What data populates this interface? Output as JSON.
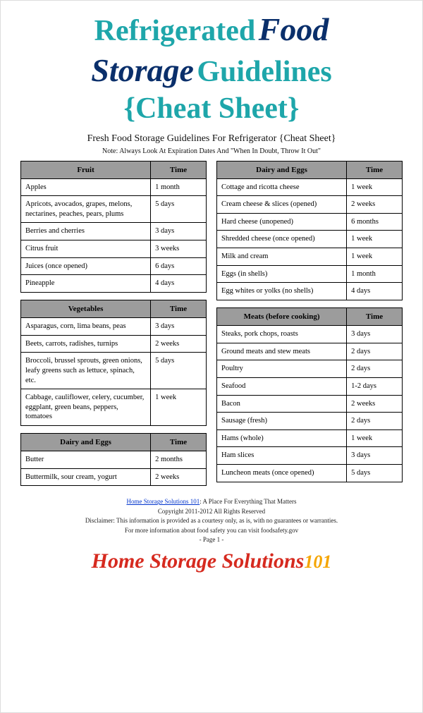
{
  "colors": {
    "teal": "#1ea6aa",
    "navy": "#0a2f6b",
    "header_gray": "#9c9c9c",
    "brand_red": "#d62a1f",
    "brand_yellow": "#f5a500",
    "link_blue": "#0033cc"
  },
  "title": {
    "word1": "Refrigerated",
    "word2": "Food",
    "word3": "Storage",
    "word4": "Guidelines",
    "word5": "{Cheat Sheet}"
  },
  "subtitle": "Fresh Food Storage Guidelines For Refrigerator {Cheat Sheet}",
  "note": "Note: Always Look At Expiration Dates And \"When In Doubt, Throw It Out\"",
  "sections_left": [
    {
      "header": {
        "name": "Fruit",
        "time": "Time"
      },
      "rows": [
        {
          "item": "Apples",
          "time": "1 month"
        },
        {
          "item": "Apricots, avocados, grapes, melons, nectarines, peaches, pears, plums",
          "time": "5 days"
        },
        {
          "item": "Berries and cherries",
          "time": "3 days"
        },
        {
          "item": "Citrus fruit",
          "time": "3 weeks"
        },
        {
          "item": "Juices (once opened)",
          "time": "6 days"
        },
        {
          "item": "Pineapple",
          "time": "4 days"
        }
      ]
    },
    {
      "header": {
        "name": "Vegetables",
        "time": "Time"
      },
      "rows": [
        {
          "item": "Asparagus, corn, lima beans, peas",
          "time": "3 days"
        },
        {
          "item": "Beets, carrots, radishes, turnips",
          "time": "2 weeks"
        },
        {
          "item": "Broccoli, brussel sprouts, green onions, leafy greens such as lettuce, spinach, etc.",
          "time": "5 days"
        },
        {
          "item": "Cabbage, cauliflower, celery, cucumber, eggplant, green beans, peppers, tomatoes",
          "time": "1 week"
        }
      ]
    },
    {
      "header": {
        "name": "Dairy and Eggs",
        "time": "Time"
      },
      "rows": [
        {
          "item": "Butter",
          "time": "2 months"
        },
        {
          "item": "Buttermilk, sour cream, yogurt",
          "time": "2 weeks"
        }
      ]
    }
  ],
  "sections_right": [
    {
      "header": {
        "name": "Dairy and Eggs",
        "time": "Time"
      },
      "rows": [
        {
          "item": "Cottage and ricotta cheese",
          "time": "1 week"
        },
        {
          "item": "Cream cheese & slices (opened)",
          "time": "2 weeks"
        },
        {
          "item": "Hard cheese (unopened)",
          "time": "6 months"
        },
        {
          "item": "Shredded cheese (once opened)",
          "time": "1 week"
        },
        {
          "item": "Milk and cream",
          "time": "1 week"
        },
        {
          "item": "Eggs (in shells)",
          "time": "1 month"
        },
        {
          "item": "Egg whites or yolks (no shells)",
          "time": "4 days"
        }
      ]
    },
    {
      "header": {
        "name": "Meats (before cooking)",
        "time": "Time"
      },
      "rows": [
        {
          "item": "Steaks, pork chops, roasts",
          "time": "3 days"
        },
        {
          "item": "Ground meats and stew meats",
          "time": "2 days"
        },
        {
          "item": "Poultry",
          "time": "2 days"
        },
        {
          "item": "Seafood",
          "time": "1-2 days"
        },
        {
          "item": "Bacon",
          "time": "2 weeks"
        },
        {
          "item": "Sausage (fresh)",
          "time": "2 days"
        },
        {
          "item": "Hams (whole)",
          "time": "1 week"
        },
        {
          "item": "Ham slices",
          "time": "3 days"
        },
        {
          "item": "Luncheon meats (once opened)",
          "time": "5 days"
        }
      ]
    }
  ],
  "footer": {
    "link_text": "Home Storage Solutions 101",
    "tagline": ": A Place For Everything That Matters",
    "copyright": "Copyright 2011-2012 All Rights Reserved",
    "disclaimer": "Disclaimer: This information is provided as a courtesy only, as is, with no guarantees or warranties.",
    "more_info": "For more information about food safety you can visit foodsafety.gov",
    "page": "- Page 1 -"
  },
  "brand": {
    "main": "Home Storage Solutions",
    "num": "101"
  }
}
